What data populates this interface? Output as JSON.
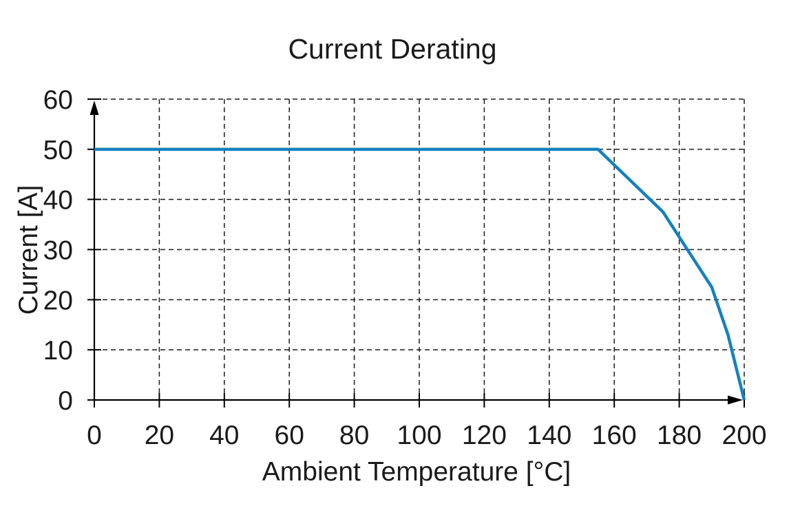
{
  "page": {
    "background": "#ffffff"
  },
  "chart_data": {
    "type": "line",
    "title": "Current Derating",
    "xlabel": "Ambient Temperature [°C]",
    "ylabel": "Current [A]",
    "xlim": [
      0,
      200
    ],
    "ylim": [
      0,
      60
    ],
    "xticks": [
      0,
      20,
      40,
      60,
      80,
      100,
      120,
      140,
      160,
      180,
      200
    ],
    "yticks": [
      0,
      10,
      20,
      30,
      40,
      50,
      60
    ],
    "grid": {
      "style": "dashed",
      "dash": "7 5",
      "color": "#1a1a1a",
      "width": 1.5
    },
    "axes": {
      "color": "#000000",
      "width": 2.2,
      "arrows": true,
      "tick_overhang": 10
    },
    "legend": null,
    "series": [
      {
        "name": "current-derating-curve",
        "color": "#1581be",
        "width": 4.5,
        "points": [
          [
            0,
            50
          ],
          [
            155,
            50
          ],
          [
            175,
            37.5
          ],
          [
            190,
            22.5
          ],
          [
            195,
            13
          ],
          [
            200,
            0
          ]
        ]
      }
    ]
  }
}
